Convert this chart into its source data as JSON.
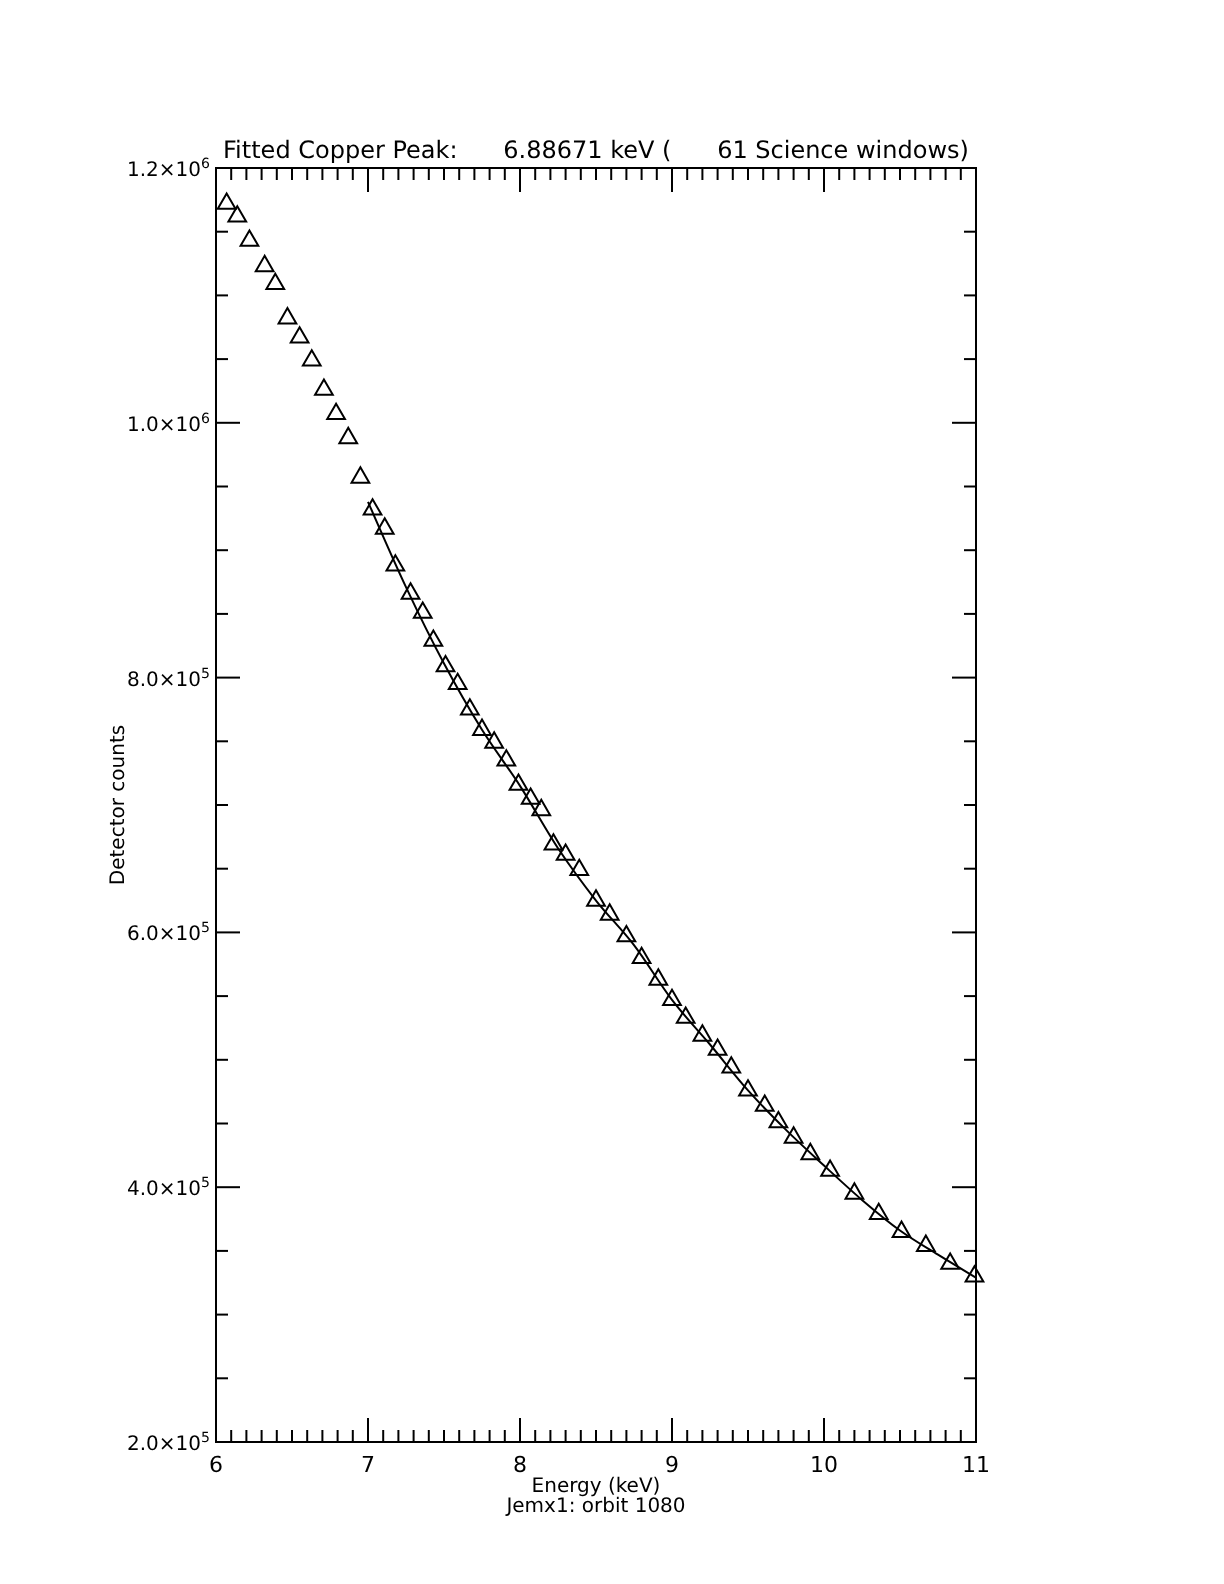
{
  "chart_data": {
    "type": "scatter",
    "title": "Fitted Copper Peak:      6.88671 keV (      61 Science windows)",
    "xlabel": "Energy (keV)",
    "ylabel": "Detector counts",
    "annotations": [
      "Jemx1: orbit 1080"
    ],
    "xlim": [
      6,
      11
    ],
    "ylim": [
      200000,
      1200000
    ],
    "xticks": [
      6,
      {
        "value": 6.1,
        "label": null
      },
      {
        "value": 6.2,
        "label": null
      },
      {
        "value": 6.3,
        "label": null
      },
      {
        "value": 6.4,
        "label": null
      },
      {
        "value": 6.5,
        "label": null
      },
      {
        "value": 6.6,
        "label": null
      },
      {
        "value": 6.7,
        "label": null
      },
      {
        "value": 6.8,
        "label": null
      },
      {
        "value": 6.9,
        "label": null
      },
      7,
      {
        "value": 7.1,
        "label": null
      },
      {
        "value": 7.2,
        "label": null
      },
      {
        "value": 7.3,
        "label": null
      },
      {
        "value": 7.4,
        "label": null
      },
      {
        "value": 7.5,
        "label": null
      },
      {
        "value": 7.6,
        "label": null
      },
      {
        "value": 7.7,
        "label": null
      },
      {
        "value": 7.8,
        "label": null
      },
      {
        "value": 7.9,
        "label": null
      },
      8,
      {
        "value": 8.1,
        "label": null
      },
      {
        "value": 8.2,
        "label": null
      },
      {
        "value": 8.3,
        "label": null
      },
      {
        "value": 8.4,
        "label": null
      },
      {
        "value": 8.5,
        "label": null
      },
      {
        "value": 8.6,
        "label": null
      },
      {
        "value": 8.7,
        "label": null
      },
      {
        "value": 8.8,
        "label": null
      },
      {
        "value": 8.9,
        "label": null
      },
      9,
      {
        "value": 9.1,
        "label": null
      },
      {
        "value": 9.2,
        "label": null
      },
      {
        "value": 9.3,
        "label": null
      },
      {
        "value": 9.4,
        "label": null
      },
      {
        "value": 9.5,
        "label": null
      },
      {
        "value": 9.6,
        "label": null
      },
      {
        "value": 9.7,
        "label": null
      },
      {
        "value": 9.8,
        "label": null
      },
      {
        "value": 9.9,
        "label": null
      },
      10,
      {
        "value": 10.1,
        "label": null
      },
      {
        "value": 10.2,
        "label": null
      },
      {
        "value": 10.3,
        "label": null
      },
      {
        "value": 10.4,
        "label": null
      },
      {
        "value": 10.5,
        "label": null
      },
      {
        "value": 10.6,
        "label": null
      },
      {
        "value": 10.7,
        "label": null
      },
      {
        "value": 10.8,
        "label": null
      },
      {
        "value": 10.9,
        "label": null
      },
      11
    ],
    "yticks": [
      {
        "value": 200000,
        "label": "2.0×10$^{5}$"
      },
      {
        "value": 250000,
        "label": null
      },
      {
        "value": 300000,
        "label": null
      },
      {
        "value": 350000,
        "label": null
      },
      {
        "value": 400000,
        "label": "4.0×10$^{5}$"
      },
      {
        "value": 450000,
        "label": null
      },
      {
        "value": 500000,
        "label": null
      },
      {
        "value": 550000,
        "label": null
      },
      {
        "value": 600000,
        "label": "6.0×10$^{5}$"
      },
      {
        "value": 650000,
        "label": null
      },
      {
        "value": 700000,
        "label": null
      },
      {
        "value": 750000,
        "label": null
      },
      {
        "value": 800000,
        "label": "8.0×10$^{5}$"
      },
      {
        "value": 850000,
        "label": null
      },
      {
        "value": 900000,
        "label": null
      },
      {
        "value": 950000,
        "label": null
      },
      {
        "value": 1000000,
        "label": "1.0×10$^{6}$"
      },
      {
        "value": 1050000,
        "label": null
      },
      {
        "value": 1100000,
        "label": null
      },
      {
        "value": 1150000,
        "label": null
      },
      {
        "value": 1200000,
        "label": "1.2×10$^{6}$"
      }
    ],
    "grid": false,
    "series": [
      {
        "marker": "triangle",
        "color": "#000000",
        "x": [
          6.07,
          6.14,
          6.22,
          6.32,
          6.39,
          6.47,
          6.55,
          6.63,
          6.71,
          6.79,
          6.87,
          6.95,
          7.03,
          7.11,
          7.18,
          7.28,
          7.36,
          7.43,
          7.51,
          7.59,
          7.67,
          7.75,
          7.83,
          7.91,
          7.99,
          8.07,
          8.14,
          8.22,
          8.3,
          8.39,
          8.5,
          8.59,
          8.7,
          8.8,
          8.91,
          9.0,
          9.09,
          9.2,
          9.3,
          9.39,
          9.5,
          9.61,
          9.7,
          9.8,
          9.91,
          10.04,
          10.2,
          10.36,
          10.51,
          10.67,
          10.83,
          10.99
        ],
        "values": [
          1172000,
          1162000,
          1143000,
          1123000,
          1109000,
          1082000,
          1067000,
          1049000,
          1026000,
          1007000,
          988000,
          957000,
          932000,
          917000,
          888000,
          866000,
          851000,
          829000,
          809000,
          795000,
          775000,
          759000,
          749000,
          735000,
          716000,
          705000,
          696000,
          669000,
          661000,
          649000,
          625000,
          614000,
          597000,
          580000,
          563000,
          547000,
          533000,
          519000,
          508000,
          494000,
          476000,
          464000,
          451000,
          439000,
          426000,
          413000,
          395000,
          379000,
          365000,
          354000,
          340000,
          330000
        ]
      },
      {
        "type": "line",
        "marker": "none",
        "line_style": "solid",
        "color": "#000000",
        "x": [
          7.0,
          7.25,
          7.5,
          7.75,
          8.0,
          8.25,
          8.5,
          8.75,
          9.0,
          9.25,
          9.5,
          9.75,
          10.0,
          10.25,
          10.5,
          10.75,
          11.0
        ],
        "values": [
          938000,
          871000,
          811000,
          759000,
          715000,
          666000,
          625000,
          590000,
          547000,
          512000,
          476000,
          445000,
          417000,
          390000,
          366000,
          347000,
          329000
        ]
      }
    ]
  }
}
